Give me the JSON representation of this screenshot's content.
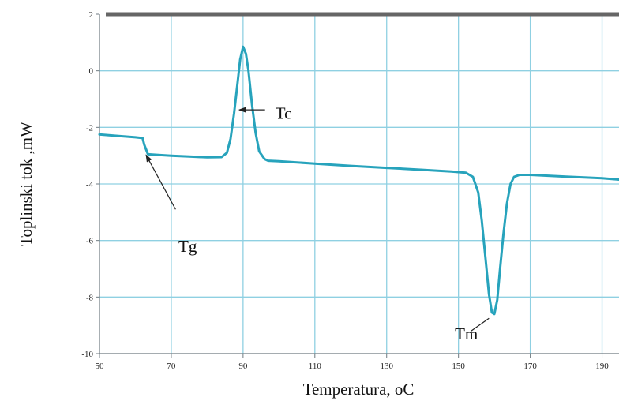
{
  "chart_data": {
    "type": "line",
    "title": "",
    "xlabel": "Temperatura, oC",
    "ylabel": "Toplinski tok ,mW",
    "xlim": [
      50,
      200
    ],
    "ylim": [
      -10,
      2
    ],
    "x_ticks": [
      "50",
      "70",
      "90",
      "110",
      "130",
      "150",
      "170",
      "190"
    ],
    "y_ticks": [
      "2",
      "0",
      "-2",
      "-4",
      "-6",
      "-8",
      "-10"
    ],
    "grid": true,
    "series": [
      {
        "color": "#27a3bc",
        "x": [
          50,
          55,
          60,
          62,
          62.5,
          63.5,
          66,
          70,
          75,
          80,
          84,
          85.5,
          86.5,
          87.5,
          88.5,
          89.2,
          90,
          90.8,
          91.5,
          92.5,
          93.5,
          94.5,
          96,
          97,
          100,
          110,
          120,
          130,
          140,
          148,
          152,
          154,
          155.5,
          156.5,
          157.5,
          158.5,
          159.3,
          160,
          160.8,
          161.5,
          162.5,
          163.5,
          164.5,
          165.5,
          167,
          170,
          180,
          190,
          200
        ],
        "y": [
          -2.25,
          -2.3,
          -2.35,
          -2.38,
          -2.62,
          -2.95,
          -2.97,
          -3.0,
          -3.03,
          -3.06,
          -3.05,
          -2.9,
          -2.4,
          -1.5,
          -0.4,
          0.4,
          0.85,
          0.6,
          0.0,
          -1.2,
          -2.2,
          -2.85,
          -3.12,
          -3.18,
          -3.2,
          -3.28,
          -3.36,
          -3.43,
          -3.5,
          -3.56,
          -3.6,
          -3.75,
          -4.3,
          -5.3,
          -6.6,
          -7.9,
          -8.55,
          -8.6,
          -8.1,
          -7.1,
          -5.8,
          -4.7,
          -4.0,
          -3.75,
          -3.68,
          -3.68,
          -3.74,
          -3.8,
          -3.9
        ]
      }
    ],
    "annotations": [
      {
        "text": "Tc",
        "x": 99,
        "y": -1.5,
        "arrow_to": [
          88.5,
          -1.38
        ]
      },
      {
        "text": "Tg",
        "x": 72,
        "y": -6.2,
        "arrow_from": [
          71.2,
          -4.9
        ],
        "arrow_to": [
          63,
          -2.98
        ]
      },
      {
        "text": "Tm",
        "x": 149,
        "y": -9.3,
        "arrow_from": [
          153.5,
          -9.2
        ],
        "arrow_to": [
          158.5,
          -8.75
        ]
      }
    ]
  },
  "colors": {
    "grid": "#8fd0e2",
    "frame": "#6f7a80",
    "top_band": "#666666",
    "line": "#27a3bc"
  }
}
